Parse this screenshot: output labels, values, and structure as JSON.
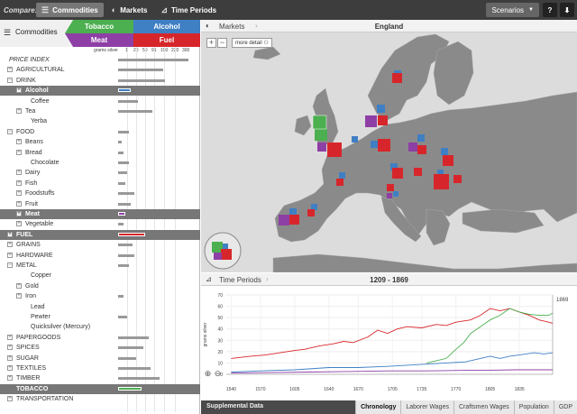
{
  "topbar": {
    "compare_label": "Compare:",
    "commodities_label": "Commodities",
    "markets_label": "Markets",
    "time_periods_label": "Time Periods",
    "scenarios_label": "Scenarios",
    "help_label": "?",
    "download_label": "⬇"
  },
  "left": {
    "title": "Commodities",
    "tags": [
      "Tobacco",
      "Alcohol",
      "Meat",
      "Fuel"
    ],
    "tag_colors": {
      "Tobacco": "#4caf50",
      "Alcohol": "#3f7fc4",
      "Meat": "#8e3fa5",
      "Fuel": "#d7262b"
    },
    "scale_unit": "grams silver",
    "scale_ticks": [
      "1",
      "20",
      "50",
      "91",
      "150",
      "220",
      "300"
    ],
    "rows": [
      {
        "label": "PRICE INDEX",
        "indent": 0,
        "exp": "",
        "style": "italic",
        "bar": 78
      },
      {
        "label": "AGRICULTURAL",
        "indent": 1,
        "exp": "+",
        "bar": 50
      },
      {
        "label": "DRINK",
        "indent": 1,
        "exp": "−",
        "bar": 52
      },
      {
        "label": "Alcohol",
        "indent": 2,
        "exp": "+",
        "sel": true,
        "bar": 14,
        "barColor": "#3f7fc4"
      },
      {
        "label": "Coffee",
        "indent": 3,
        "exp": "",
        "bar": 22
      },
      {
        "label": "Tea",
        "indent": 2,
        "exp": "+",
        "bar": 38
      },
      {
        "label": "Yerba",
        "indent": 3,
        "exp": "",
        "bar": 0
      },
      {
        "label": "FOOD",
        "indent": 1,
        "exp": "−",
        "bar": 12
      },
      {
        "label": "Beans",
        "indent": 2,
        "exp": "+",
        "bar": 4
      },
      {
        "label": "Bread",
        "indent": 2,
        "exp": "+",
        "bar": 6
      },
      {
        "label": "Chocolate",
        "indent": 3,
        "exp": "",
        "bar": 12
      },
      {
        "label": "Dairy",
        "indent": 2,
        "exp": "+",
        "bar": 10
      },
      {
        "label": "Fish",
        "indent": 2,
        "exp": "+",
        "bar": 8
      },
      {
        "label": "Foodstuffs",
        "indent": 2,
        "exp": "+",
        "bar": 18
      },
      {
        "label": "Fruit",
        "indent": 2,
        "exp": "+",
        "bar": 14
      },
      {
        "label": "Meat",
        "indent": 2,
        "exp": "+",
        "sel": true,
        "bar": 8,
        "barColor": "#8e3fa5"
      },
      {
        "label": "Vegetable",
        "indent": 2,
        "exp": "+",
        "bar": 6
      },
      {
        "label": "FUEL",
        "indent": 1,
        "exp": "+",
        "sel": true,
        "bar": 30,
        "barColor": "#d7262b"
      },
      {
        "label": "GRAINS",
        "indent": 1,
        "exp": "+",
        "bar": 16
      },
      {
        "label": "HARDWARE",
        "indent": 1,
        "exp": "+",
        "bar": 18
      },
      {
        "label": "METAL",
        "indent": 1,
        "exp": "−",
        "bar": 12
      },
      {
        "label": "Copper",
        "indent": 3,
        "exp": "",
        "bar": 0
      },
      {
        "label": "Gold",
        "indent": 2,
        "exp": "+",
        "bar": 0
      },
      {
        "label": "Iron",
        "indent": 2,
        "exp": "+",
        "bar": 6
      },
      {
        "label": "Lead",
        "indent": 3,
        "exp": "",
        "bar": 0
      },
      {
        "label": "Pewter",
        "indent": 3,
        "exp": "",
        "bar": 10
      },
      {
        "label": "Quicksilver (Mercury)",
        "indent": 3,
        "exp": "",
        "bar": 0
      },
      {
        "label": "PAPERGOODS",
        "indent": 1,
        "exp": "+",
        "bar": 34
      },
      {
        "label": "SPICES",
        "indent": 1,
        "exp": "+",
        "bar": 28
      },
      {
        "label": "SUGAR",
        "indent": 1,
        "exp": "+",
        "bar": 20
      },
      {
        "label": "TEXTILES",
        "indent": 1,
        "exp": "+",
        "bar": 36
      },
      {
        "label": "TIMBER",
        "indent": 1,
        "exp": "+",
        "bar": 46
      },
      {
        "label": "TOBACCO",
        "indent": 1,
        "exp": "",
        "sel": true,
        "bar": 26,
        "barColor": "#4caf50"
      },
      {
        "label": "TRANSPORTATION",
        "indent": 1,
        "exp": "+",
        "bar": 0
      }
    ]
  },
  "map": {
    "label": "Markets",
    "title": "England",
    "zoom_in": "+",
    "zoom_out": "−",
    "more_detail": "more detail"
  },
  "time": {
    "label": "Time Periods",
    "title": "1209 - 1869",
    "ylabel": "grams silver",
    "end_marker": "1869"
  },
  "bottom": {
    "supplemental": "Supplemental Data",
    "tabs": [
      "Chronology",
      "Laborer Wages",
      "Craftsmen Wages",
      "Population",
      "GDP"
    ],
    "active_tab": "Chronology"
  },
  "chart_data": {
    "type": "line",
    "ylabel": "grams silver",
    "ylim": [
      0,
      70
    ],
    "yticks": [
      0,
      10,
      20,
      30,
      40,
      50,
      60,
      70
    ],
    "xticks": [
      1540,
      1570,
      1605,
      1640,
      1670,
      1705,
      1735,
      1770,
      1805,
      1835
    ],
    "series": [
      {
        "color": "#d7262b",
        "points": [
          [
            1540,
            14
          ],
          [
            1560,
            16
          ],
          [
            1575,
            17
          ],
          [
            1590,
            19
          ],
          [
            1605,
            21
          ],
          [
            1615,
            22
          ],
          [
            1630,
            25
          ],
          [
            1645,
            27
          ],
          [
            1655,
            29
          ],
          [
            1665,
            28
          ],
          [
            1680,
            33
          ],
          [
            1690,
            39
          ],
          [
            1700,
            36
          ],
          [
            1710,
            40
          ],
          [
            1720,
            42
          ],
          [
            1735,
            41
          ],
          [
            1750,
            44
          ],
          [
            1760,
            43
          ],
          [
            1770,
            46
          ],
          [
            1785,
            48
          ],
          [
            1795,
            52
          ],
          [
            1805,
            58
          ],
          [
            1815,
            56
          ],
          [
            1825,
            58
          ],
          [
            1835,
            55
          ],
          [
            1845,
            52
          ],
          [
            1855,
            48
          ],
          [
            1865,
            46
          ],
          [
            1869,
            45
          ]
        ]
      },
      {
        "color": "#4caf50",
        "points": [
          [
            1740,
            10
          ],
          [
            1750,
            12
          ],
          [
            1760,
            14
          ],
          [
            1770,
            22
          ],
          [
            1778,
            28
          ],
          [
            1785,
            36
          ],
          [
            1795,
            42
          ],
          [
            1805,
            48
          ],
          [
            1815,
            52
          ],
          [
            1825,
            58
          ],
          [
            1835,
            55
          ],
          [
            1845,
            53
          ],
          [
            1855,
            52
          ],
          [
            1865,
            52
          ],
          [
            1869,
            54
          ]
        ]
      },
      {
        "color": "#3f7fc4",
        "points": [
          [
            1540,
            2
          ],
          [
            1570,
            3
          ],
          [
            1605,
            4
          ],
          [
            1640,
            6
          ],
          [
            1670,
            6
          ],
          [
            1700,
            7
          ],
          [
            1720,
            8
          ],
          [
            1740,
            9
          ],
          [
            1760,
            10
          ],
          [
            1780,
            11
          ],
          [
            1795,
            14
          ],
          [
            1805,
            16
          ],
          [
            1815,
            14
          ],
          [
            1825,
            16
          ],
          [
            1835,
            17
          ],
          [
            1850,
            19
          ],
          [
            1860,
            18
          ],
          [
            1869,
            19
          ]
        ]
      },
      {
        "color": "#8e3fa5",
        "points": [
          [
            1540,
            1
          ],
          [
            1580,
            1.5
          ],
          [
            1620,
            2
          ],
          [
            1660,
            2.5
          ],
          [
            1700,
            3
          ],
          [
            1740,
            3
          ],
          [
            1780,
            3.5
          ],
          [
            1800,
            3.5
          ],
          [
            1830,
            4
          ],
          [
            1869,
            4
          ]
        ]
      }
    ]
  },
  "map_squares": [
    {
      "c": "#3f7fc4",
      "x": 214,
      "y": 42,
      "s": 8
    },
    {
      "c": "#d7262b",
      "x": 212,
      "y": 45,
      "s": 11
    },
    {
      "c": "#3f7fc4",
      "x": 195,
      "y": 80,
      "s": 9
    },
    {
      "c": "#8e3fa5",
      "x": 182,
      "y": 92,
      "s": 13
    },
    {
      "c": "#d7262b",
      "x": 196,
      "y": 92,
      "s": 11
    },
    {
      "c": "#4caf50",
      "x": 126,
      "y": 106,
      "s": 14
    },
    {
      "c": "#d7262b",
      "x": 140,
      "y": 122,
      "s": 16
    },
    {
      "c": "#8e3fa5",
      "x": 129,
      "y": 122,
      "s": 10
    },
    {
      "c": "#3f7fc4",
      "x": 167,
      "y": 115,
      "s": 7
    },
    {
      "c": "#3f7fc4",
      "x": 188,
      "y": 120,
      "s": 8
    },
    {
      "c": "#d7262b",
      "x": 196,
      "y": 118,
      "s": 14
    },
    {
      "c": "#3f7fc4",
      "x": 240,
      "y": 113,
      "s": 8
    },
    {
      "c": "#d7262b",
      "x": 240,
      "y": 125,
      "s": 10
    },
    {
      "c": "#8e3fa5",
      "x": 230,
      "y": 122,
      "s": 10
    },
    {
      "c": "#3f7fc4",
      "x": 266,
      "y": 128,
      "s": 8
    },
    {
      "c": "#d7262b",
      "x": 268,
      "y": 136,
      "s": 12
    },
    {
      "c": "#3f7fc4",
      "x": 153,
      "y": 155,
      "s": 7
    },
    {
      "c": "#d7262b",
      "x": 150,
      "y": 162,
      "s": 8
    },
    {
      "c": "#3f7fc4",
      "x": 210,
      "y": 145,
      "s": 8
    },
    {
      "c": "#d7262b",
      "x": 212,
      "y": 150,
      "s": 12
    },
    {
      "c": "#d7262b",
      "x": 236,
      "y": 150,
      "s": 9
    },
    {
      "c": "#3f7fc4",
      "x": 262,
      "y": 152,
      "s": 7
    },
    {
      "c": "#d7262b",
      "x": 258,
      "y": 157,
      "s": 17
    },
    {
      "c": "#d7262b",
      "x": 280,
      "y": 158,
      "s": 9
    },
    {
      "c": "#d7262b",
      "x": 206,
      "y": 168,
      "s": 8
    },
    {
      "c": "#8e3fa5",
      "x": 206,
      "y": 178,
      "s": 6
    },
    {
      "c": "#3f7fc4",
      "x": 213,
      "y": 176,
      "s": 6
    },
    {
      "c": "#3f7fc4",
      "x": 122,
      "y": 190,
      "s": 7
    },
    {
      "c": "#d7262b",
      "x": 118,
      "y": 196,
      "s": 8
    },
    {
      "c": "#8e3fa5",
      "x": 86,
      "y": 202,
      "s": 12
    },
    {
      "c": "#3f7fc4",
      "x": 98,
      "y": 195,
      "s": 8
    },
    {
      "c": "#d7262b",
      "x": 98,
      "y": 202,
      "s": 11
    }
  ]
}
